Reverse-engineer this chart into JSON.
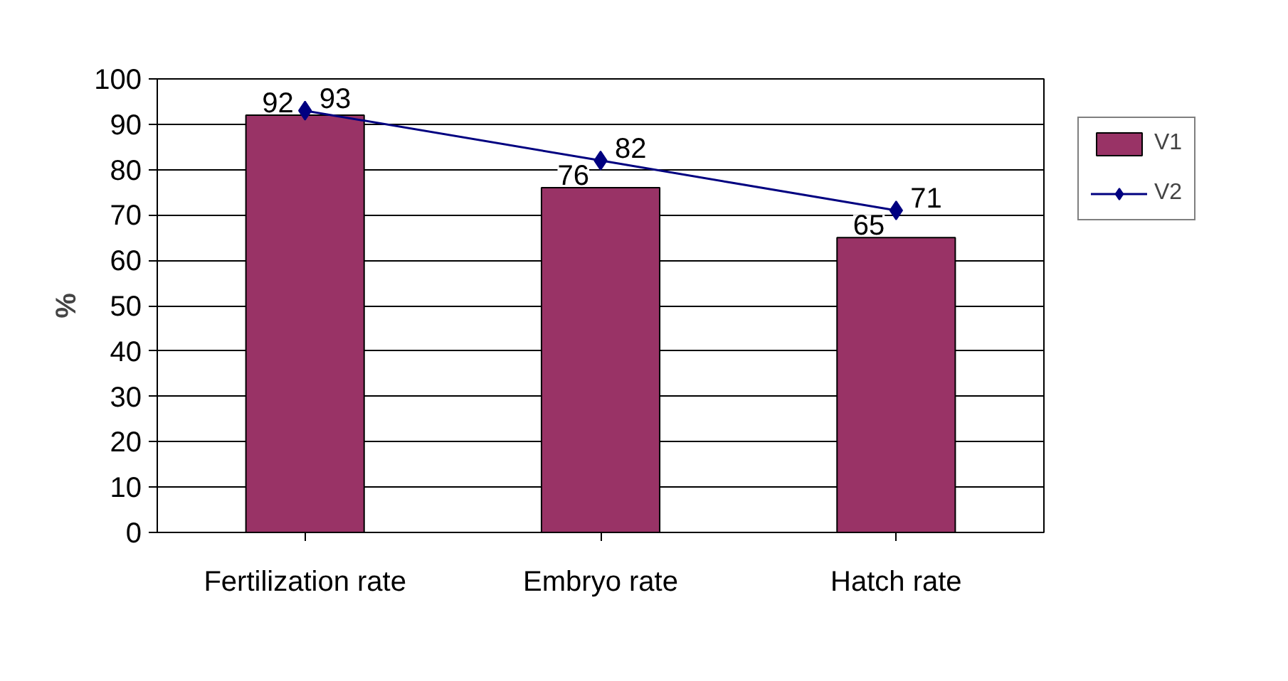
{
  "chart_data": {
    "type": "bar",
    "ylabel": "%",
    "categories": [
      "Fertilization rate",
      "Embryo rate",
      "Hatch rate"
    ],
    "series": [
      {
        "name": "V1",
        "color": "#993366",
        "values": [
          92,
          76,
          65
        ]
      },
      {
        "name": "V2",
        "type": "line",
        "color": "#000080",
        "values": [
          93,
          82,
          71
        ],
        "marker": "diamond"
      }
    ],
    "ylim": [
      0,
      100
    ],
    "yticks": [
      0,
      10,
      20,
      30,
      40,
      50,
      60,
      70,
      80,
      90,
      100
    ],
    "grid": "y",
    "legend": "right",
    "data_labels": true
  }
}
